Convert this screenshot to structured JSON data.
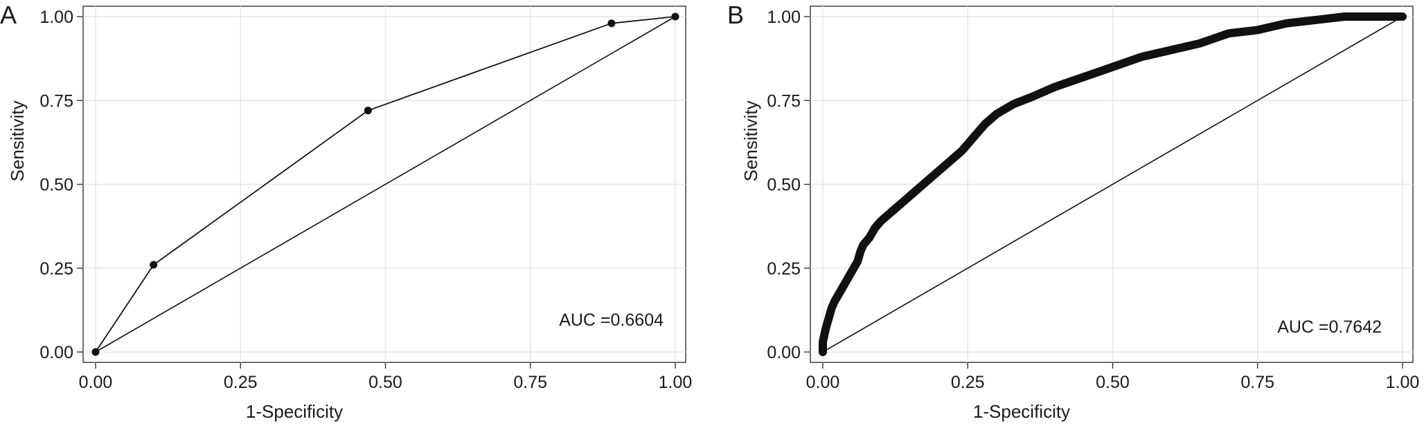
{
  "chart_data": [
    {
      "panel_label": "A",
      "type": "line",
      "xlabel": "1-Specificity",
      "ylabel": "Sensitivity",
      "xlim": [
        0,
        1
      ],
      "ylim": [
        0,
        1
      ],
      "xticks": [
        "0.00",
        "0.25",
        "0.50",
        "0.75",
        "1.00"
      ],
      "yticks": [
        "0.00",
        "0.25",
        "0.50",
        "0.75",
        "1.00"
      ],
      "grid": true,
      "annotation": "AUC =0.6604",
      "series": [
        {
          "style": "line-with-markers",
          "color": "#111111",
          "x": [
            0.0,
            0.1,
            0.47,
            0.89,
            1.0
          ],
          "y": [
            0.0,
            0.26,
            0.72,
            0.98,
            1.0
          ]
        },
        {
          "style": "reference-line",
          "color": "#111111",
          "x": [
            0.0,
            1.0
          ],
          "y": [
            0.0,
            1.0
          ]
        }
      ]
    },
    {
      "panel_label": "B",
      "type": "line",
      "xlabel": "1-Specificity",
      "ylabel": "Sensitivity",
      "xlim": [
        0,
        1
      ],
      "ylim": [
        0,
        1
      ],
      "xticks": [
        "0.00",
        "0.25",
        "0.50",
        "0.75",
        "1.00"
      ],
      "yticks": [
        "0.00",
        "0.25",
        "0.50",
        "0.75",
        "1.00"
      ],
      "grid": true,
      "annotation": "AUC =0.7642",
      "series": [
        {
          "style": "thick-curve",
          "color": "#111111",
          "x": [
            0.0,
            0.0,
            0.005,
            0.01,
            0.015,
            0.02,
            0.03,
            0.04,
            0.05,
            0.06,
            0.065,
            0.07,
            0.08,
            0.09,
            0.1,
            0.12,
            0.14,
            0.16,
            0.18,
            0.2,
            0.22,
            0.24,
            0.26,
            0.28,
            0.3,
            0.33,
            0.36,
            0.4,
            0.45,
            0.5,
            0.55,
            0.6,
            0.65,
            0.7,
            0.75,
            0.8,
            0.85,
            0.9,
            0.95,
            1.0
          ],
          "y": [
            0.0,
            0.03,
            0.07,
            0.1,
            0.13,
            0.15,
            0.18,
            0.21,
            0.24,
            0.27,
            0.3,
            0.32,
            0.34,
            0.37,
            0.39,
            0.42,
            0.45,
            0.48,
            0.51,
            0.54,
            0.57,
            0.6,
            0.64,
            0.68,
            0.71,
            0.74,
            0.76,
            0.79,
            0.82,
            0.85,
            0.88,
            0.9,
            0.92,
            0.95,
            0.96,
            0.98,
            0.99,
            1.0,
            1.0,
            1.0
          ]
        },
        {
          "style": "reference-line",
          "color": "#111111",
          "x": [
            0.0,
            1.0
          ],
          "y": [
            0.0,
            1.0
          ]
        }
      ]
    }
  ]
}
